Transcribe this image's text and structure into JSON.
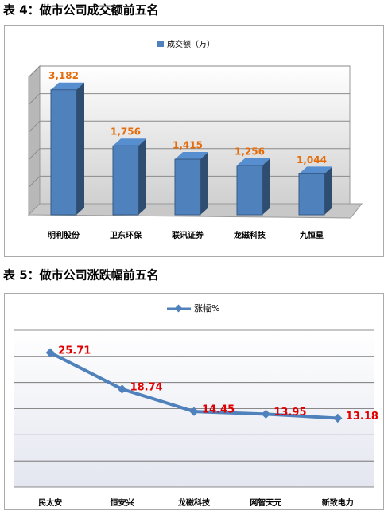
{
  "chart_data": [
    {
      "type": "bar",
      "title": "表 4：做市公司成交额前五名",
      "categories": [
        "明利股份",
        "卫东环保",
        "联讯证券",
        "龙磁科技",
        "九恒星"
      ],
      "series": [
        {
          "name": "成交额（万）",
          "color": "#4f81bd",
          "values": [
            3182,
            1756,
            1415,
            1256,
            1044
          ],
          "value_labels": [
            "3,182",
            "1,756",
            "1,415",
            "1,256",
            "1,044"
          ]
        }
      ],
      "ylim": [
        0,
        3500
      ],
      "grid": true,
      "legend": "top",
      "label_color": "#e46c0a"
    },
    {
      "type": "line",
      "title": "表 5：做市公司涨跌幅前五名",
      "categories": [
        "民太安",
        "恒安兴",
        "龙磁科技",
        "网智天元",
        "新致电力"
      ],
      "series": [
        {
          "name": "涨幅%",
          "color": "#4f81bd",
          "values": [
            25.71,
            18.74,
            14.45,
            13.95,
            13.18
          ]
        }
      ],
      "ylim": [
        0,
        30
      ],
      "grid": true,
      "legend": "top",
      "label_color": "#e00000"
    }
  ]
}
